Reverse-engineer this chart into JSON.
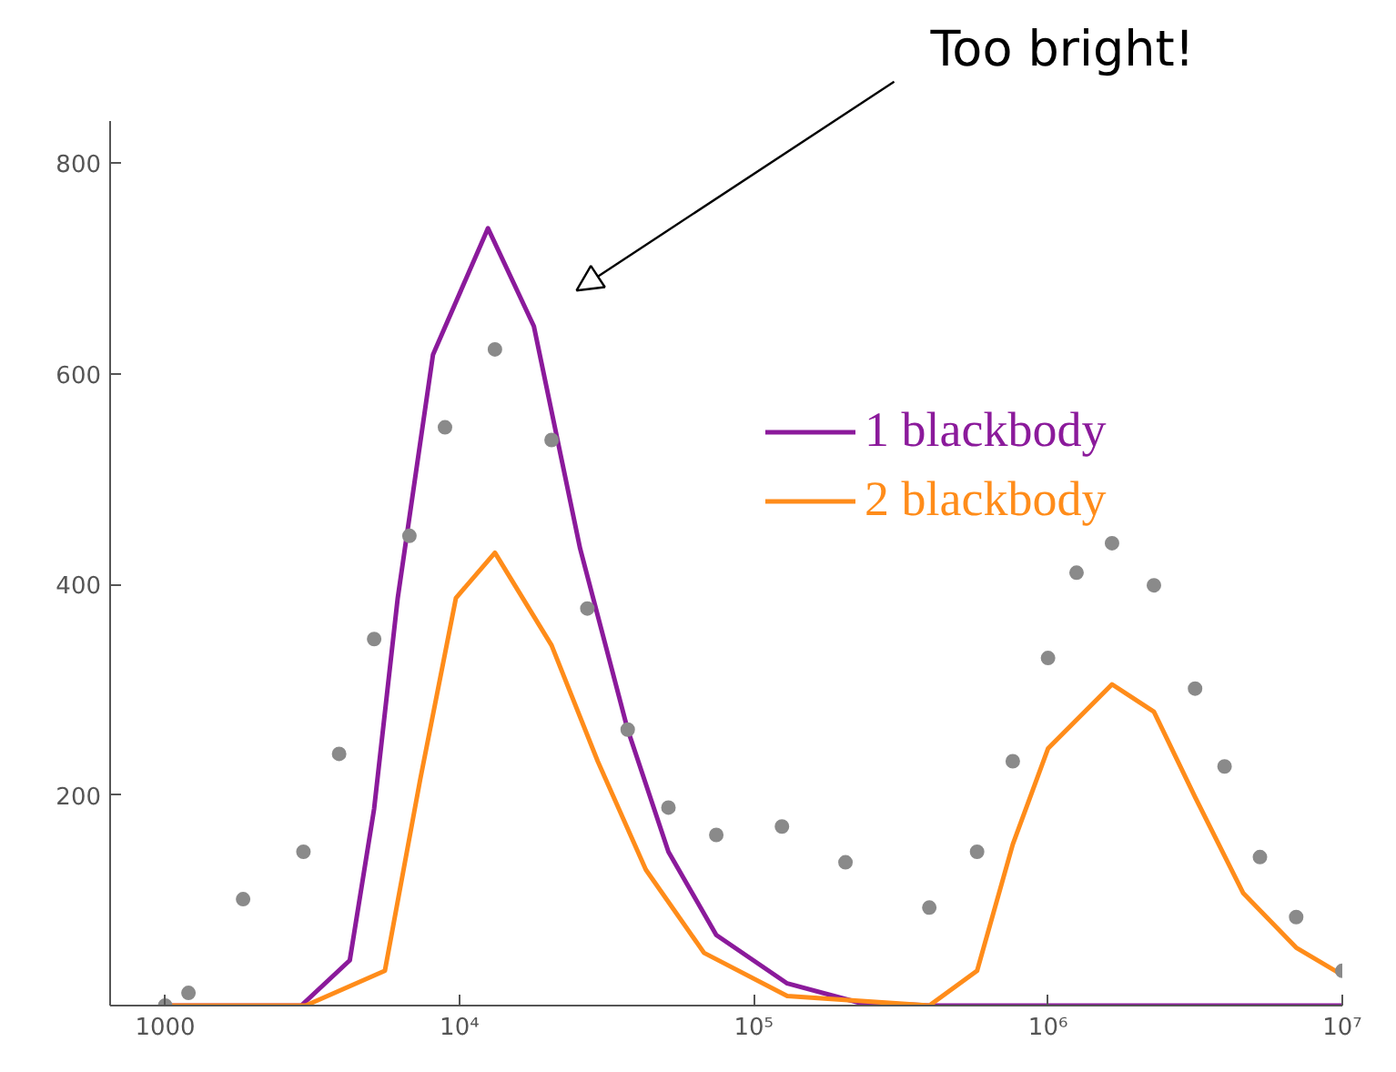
{
  "chart_data": {
    "type": "line",
    "log": "x",
    "xlim": [
      650,
      10000000
    ],
    "ylim": [
      0,
      840
    ],
    "xticks": [
      1000,
      {
        "value": 10000,
        "label": "10⁴"
      },
      {
        "value": 100000,
        "label": "10⁵"
      },
      {
        "value": 1000000,
        "label": "10⁶"
      },
      {
        "value": 10000000,
        "label": "10⁷"
      }
    ],
    "yticks": [
      200,
      400,
      600,
      800
    ],
    "grid": false,
    "legend": "top right",
    "annotations": [
      "Too bright!"
    ],
    "series": [
      {
        "type": "scatter",
        "color": "#8a8a8a",
        "marker": "circle",
        "x": [
          1000,
          1200,
          1840,
          2950,
          3900,
          5130,
          6760,
          8930,
          13200,
          20560,
          27200,
          37300,
          51300,
          74600,
          124700,
          205000,
          395000,
          574000,
          759000,
          1000000,
          1250000,
          1650000,
          2290000,
          3160000,
          3980000,
          5250000,
          6970000,
          10000000
        ],
        "values": [
          0,
          12,
          101,
          146,
          239,
          348,
          446,
          549,
          623,
          537,
          377,
          262,
          188,
          162,
          170,
          136,
          93,
          146,
          232,
          330,
          411,
          439,
          399,
          301,
          227,
          141,
          84,
          33
        ]
      },
      {
        "name": "1 blackbody",
        "color": "#8b1a9b",
        "x": [
          1000,
          2900,
          4240,
          5130,
          6170,
          8130,
          12500,
          17900,
          25700,
          37300,
          51300,
          74600,
          130000,
          226000,
          400000,
          10000000
        ],
        "values": [
          0,
          0,
          43,
          187,
          387,
          618,
          738,
          645,
          434,
          262,
          146,
          67,
          21,
          3,
          0,
          0
        ]
      },
      {
        "name": "2 blackbody",
        "color": "#ff8c1a",
        "x": [
          1000,
          3000,
          5580,
          7360,
          9730,
          13200,
          20560,
          29500,
          43000,
          67800,
          130000,
          395000,
          574000,
          759000,
          1000000,
          1650000,
          2290000,
          3160000,
          4600000,
          6970000,
          10000000
        ],
        "values": [
          0,
          0,
          33,
          215,
          387,
          430,
          342,
          232,
          129,
          50,
          9,
          0,
          33,
          153,
          244,
          305,
          279,
          198,
          107,
          55,
          29
        ]
      }
    ]
  }
}
